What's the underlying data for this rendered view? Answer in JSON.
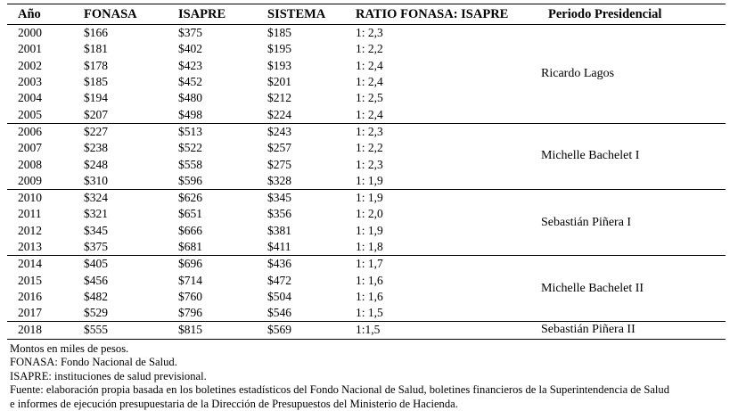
{
  "headers": [
    "Año",
    "FONASA",
    "ISAPRE",
    "SISTEMA",
    "RATIO FONASA: ISAPRE",
    "Periodo Presidencial"
  ],
  "groups": [
    {
      "period": "Ricardo Lagos",
      "rows": [
        [
          "2000",
          "$166",
          "$375",
          "$185",
          "1: 2,3"
        ],
        [
          "2001",
          "$181",
          "$402",
          "$195",
          "1: 2,2"
        ],
        [
          "2002",
          "$178",
          "$423",
          "$193",
          "1: 2,4"
        ],
        [
          "2003",
          "$185",
          "$452",
          "$201",
          "1: 2,4"
        ],
        [
          "2004",
          "$194",
          "$480",
          "$212",
          "1: 2,5"
        ],
        [
          "2005",
          "$207",
          "$498",
          "$224",
          "1: 2,4"
        ]
      ]
    },
    {
      "period": "Michelle Bachelet I",
      "rows": [
        [
          "2006",
          "$227",
          "$513",
          "$243",
          "1: 2,3"
        ],
        [
          "2007",
          "$238",
          "$522",
          "$257",
          "1: 2,2"
        ],
        [
          "2008",
          "$248",
          "$558",
          "$275",
          "1: 2,3"
        ],
        [
          "2009",
          "$310",
          "$596",
          "$328",
          "1: 1,9"
        ]
      ]
    },
    {
      "period": "Sebastián Piñera I",
      "rows": [
        [
          "2010",
          "$324",
          "$626",
          "$345",
          "1: 1,9"
        ],
        [
          "2011",
          "$321",
          "$651",
          "$356",
          "1: 2,0"
        ],
        [
          "2012",
          "$345",
          "$666",
          "$381",
          "1: 1,9"
        ],
        [
          "2013",
          "$375",
          "$681",
          "$411",
          "1: 1,8"
        ]
      ]
    },
    {
      "period": "Michelle Bachelet II",
      "rows": [
        [
          "2014",
          "$405",
          "$696",
          "$436",
          "1: 1,7"
        ],
        [
          "2015",
          "$456",
          "$714",
          "$472",
          "1: 1,6"
        ],
        [
          "2016",
          "$482",
          "$760",
          "$504",
          "1: 1,6"
        ],
        [
          "2017",
          "$529",
          "$796",
          "$546",
          "1: 1,5"
        ]
      ]
    },
    {
      "period": "Sebastián Piñera II",
      "rows": [
        [
          "2018",
          "$555",
          "$815",
          "$569",
          "1:1,5"
        ]
      ]
    }
  ],
  "notes": [
    "Montos en miles de pesos.",
    "FONASA: Fondo Nacional de Salud.",
    "ISAPRE: instituciones de salud previsional.",
    "Fuente: elaboración propia basada en los boletines estadísticos del Fondo Nacional de Salud, boletines financieros de la Superintendencia de Salud",
    "e informes de ejecución presupuestaria de la Dirección de Presupuestos del Ministerio de Hacienda."
  ]
}
